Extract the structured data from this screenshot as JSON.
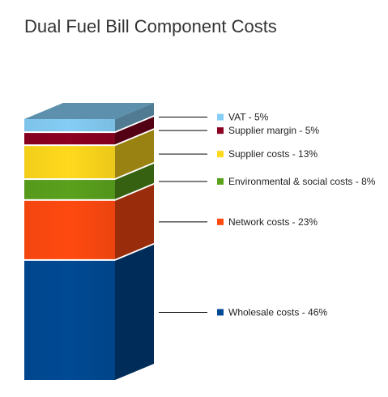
{
  "chart_data": {
    "type": "bar",
    "subtype": "stacked-3d-single-column",
    "title": "Dual Fuel Bill Component Costs",
    "unit": "%",
    "series": [
      {
        "name": "Wholesale costs",
        "value": 46,
        "label": "Wholesale costs - 46%",
        "color": "#004a94"
      },
      {
        "name": "Network costs",
        "value": 23,
        "label": "Network costs - 23%",
        "color": "#ff4a10"
      },
      {
        "name": "Environmental & social costs",
        "value": 8,
        "label": "Environmental & social costs - 8%",
        "color": "#5aa11d"
      },
      {
        "name": "Supplier costs",
        "value": 13,
        "label": "Supplier costs - 13%",
        "color": "#ffd91c"
      },
      {
        "name": "Supplier margin",
        "value": 5,
        "label": "Supplier margin - 5%",
        "color": "#8c0021"
      },
      {
        "name": "VAT",
        "value": 5,
        "label": "VAT - 5%",
        "color": "#85cdf5"
      }
    ],
    "legend_position": "right",
    "grid": false
  }
}
